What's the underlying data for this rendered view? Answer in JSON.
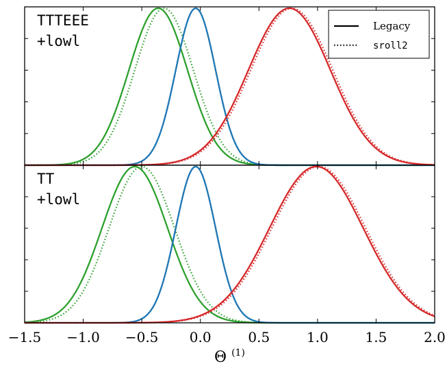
{
  "chart_data": {
    "type": "line",
    "xlabel": "Θ",
    "xlabel_superscript": "(1)",
    "xlim": [
      -1.5,
      2.0
    ],
    "ylim": [
      0,
      1
    ],
    "xticks": [
      {
        "value": -1.5,
        "label": "−1.5"
      },
      {
        "value": -1.0,
        "label": "−1.0"
      },
      {
        "value": -0.5,
        "label": "−0.5"
      },
      {
        "value": 0.0,
        "label": "0.0"
      },
      {
        "value": 0.5,
        "label": "0.5"
      },
      {
        "value": 1.0,
        "label": "1.0"
      },
      {
        "value": 1.5,
        "label": "1.5"
      },
      {
        "value": 2.0,
        "label": "2.0"
      }
    ],
    "legend": {
      "position": "top-right",
      "entries": [
        {
          "label": "Legacy",
          "style": "solid"
        },
        {
          "label": "sroll2",
          "style": "dotted"
        }
      ]
    },
    "colors": {
      "green": "#2ca02c",
      "blue": "#1f77b4",
      "red": "#d62728"
    },
    "panels": [
      {
        "label_line1": "TTTEEE",
        "label_line2": "+lowl",
        "series": [
          {
            "color": "green",
            "style": "solid",
            "peak": -0.36,
            "sigma": 0.25
          },
          {
            "color": "green",
            "style": "dotted",
            "peak": -0.31,
            "sigma": 0.25
          },
          {
            "color": "blue",
            "style": "solid",
            "peak": -0.04,
            "sigma": 0.17
          },
          {
            "color": "blue",
            "style": "dotted",
            "peak": -0.04,
            "sigma": 0.17
          },
          {
            "color": "red",
            "style": "solid",
            "peak": 0.76,
            "sigma": 0.35
          },
          {
            "color": "red",
            "style": "dotted",
            "peak": 0.78,
            "sigma": 0.35
          }
        ]
      },
      {
        "label_line1": "TT",
        "label_line2": "+lowl",
        "series": [
          {
            "color": "green",
            "style": "solid",
            "peak": -0.56,
            "sigma": 0.28
          },
          {
            "color": "green",
            "style": "dotted",
            "peak": -0.5,
            "sigma": 0.28
          },
          {
            "color": "blue",
            "style": "solid",
            "peak": -0.04,
            "sigma": 0.17
          },
          {
            "color": "blue",
            "style": "dotted",
            "peak": -0.04,
            "sigma": 0.17
          },
          {
            "color": "red",
            "style": "solid",
            "peak": 0.99,
            "sigma": 0.4
          },
          {
            "color": "red",
            "style": "dotted",
            "peak": 1.01,
            "sigma": 0.4
          }
        ]
      }
    ]
  }
}
